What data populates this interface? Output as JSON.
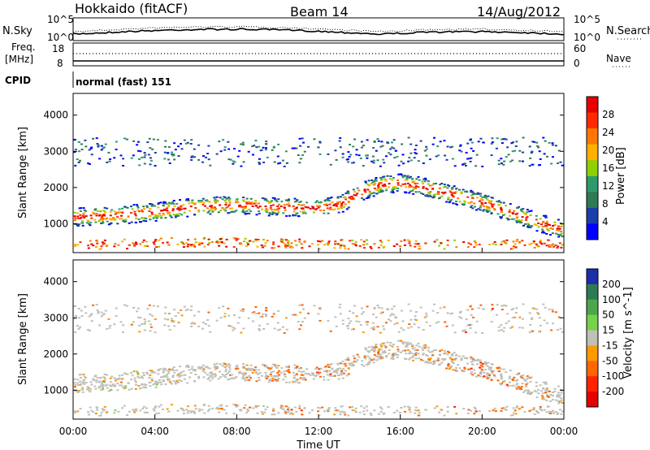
{
  "header": {
    "station": "Hokkaido (fitACF)",
    "beam": "Beam 14",
    "date": "14/Aug/2012"
  },
  "top_panels": {
    "nsky_label": "N.Sky",
    "nsearch_label": "N.Search",
    "noise_ticks_left": [
      "10^5",
      "10^0"
    ],
    "noise_ticks_right": [
      "10^5",
      "10^0"
    ],
    "freq_label": "Freq.",
    "freq_unit": "[MHz]",
    "freq_ticks": [
      "18",
      "8"
    ],
    "nave_label": "Nave",
    "nave_ticks": [
      "60",
      "0"
    ],
    "cpid_label": "CPID",
    "cpid_value": "normal (fast) 151"
  },
  "colors": {
    "power": [
      "#0000ff",
      "#1a3fa8",
      "#2f7a55",
      "#2e9a6b",
      "#8fd100",
      "#ffb000",
      "#ff7700",
      "#ff2a00",
      "#e60000"
    ],
    "velocity": [
      "#1a2fa8",
      "#2f7a55",
      "#4aa84a",
      "#77d14a",
      "#c0c0b8",
      "#ff9900",
      "#ff6600",
      "#ff2200",
      "#e60000"
    ]
  },
  "chart_data": [
    {
      "type": "heatmap",
      "panel": "power",
      "ylabel": "Slant Range [km]",
      "xlabel": "",
      "yticks": [
        "1000",
        "2000",
        "3000",
        "4000"
      ],
      "ylim": [
        200,
        4600
      ],
      "xlim": [
        0,
        24
      ],
      "colorbar_label": "Power [dB]",
      "colorbar_ticks": [
        "4",
        "8",
        "12",
        "16",
        "20",
        "24",
        "28"
      ],
      "main_band_range_km": [
        [
          0,
          1200
        ],
        [
          2,
          1250
        ],
        [
          4,
          1350
        ],
        [
          6,
          1500
        ],
        [
          8,
          1550
        ],
        [
          10,
          1480
        ],
        [
          12,
          1450
        ],
        [
          13,
          1550
        ],
        [
          14,
          1900
        ],
        [
          15,
          2100
        ],
        [
          16,
          2150
        ],
        [
          17,
          2050
        ],
        [
          18,
          1900
        ],
        [
          19,
          1750
        ],
        [
          20,
          1600
        ],
        [
          21,
          1400
        ],
        [
          22,
          1200
        ],
        [
          23,
          1000
        ],
        [
          24,
          850
        ]
      ],
      "lower_band_range_km": [
        [
          0,
          400
        ],
        [
          4,
          500
        ],
        [
          8,
          500
        ],
        [
          12,
          450
        ],
        [
          16,
          450
        ],
        [
          20,
          450
        ],
        [
          24,
          450
        ]
      ],
      "peak_power_db": 30
    },
    {
      "type": "heatmap",
      "panel": "velocity",
      "ylabel": "Slant Range [km]",
      "xlabel": "Time UT",
      "xticks": [
        "00:00",
        "04:00",
        "08:00",
        "12:00",
        "16:00",
        "20:00",
        "00:00"
      ],
      "yticks": [
        "1000",
        "2000",
        "3000",
        "4000"
      ],
      "ylim": [
        200,
        4600
      ],
      "xlim": [
        0,
        24
      ],
      "colorbar_label": "Velocity [m s^-1]",
      "colorbar_ticks": [
        "200",
        "100",
        "50",
        "15",
        "-15",
        "-50",
        "-100",
        "-200"
      ],
      "dominant_velocity_ms": [
        [
          0,
          -5
        ],
        [
          6,
          -10
        ],
        [
          12,
          -60
        ],
        [
          16,
          -20
        ],
        [
          20,
          -70
        ],
        [
          24,
          -10
        ]
      ]
    }
  ]
}
